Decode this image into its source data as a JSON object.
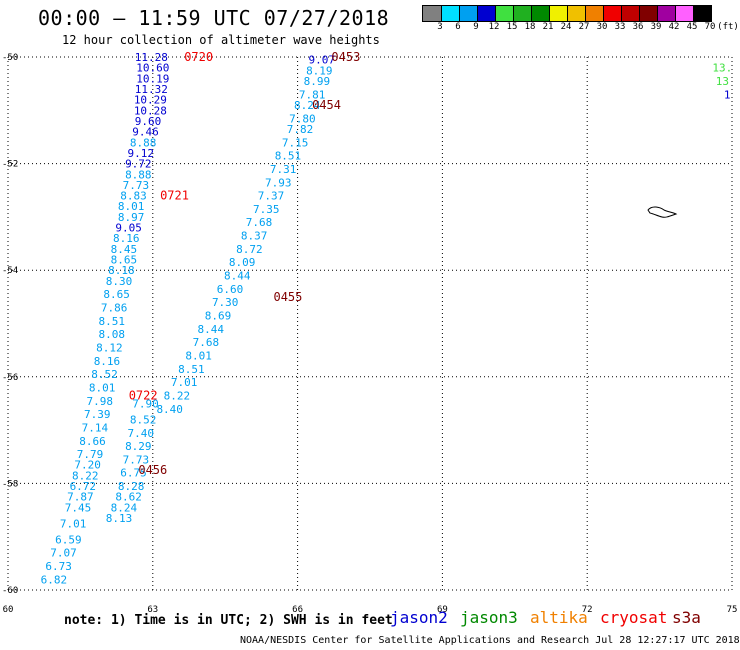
{
  "header": {
    "title": "00:00 – 11:59 UTC 07/27/2018",
    "subtitle": "12 hour collection of altimeter wave heights"
  },
  "color_scale": {
    "labels": [
      "3",
      "6",
      "9",
      "12",
      "15",
      "18",
      "21",
      "24",
      "27",
      "30",
      "33",
      "36",
      "39",
      "42",
      "45",
      "70",
      "(ft)"
    ],
    "colors": [
      "#808080",
      "#00e0ff",
      "#00a0f0",
      "#0000d0",
      "#40e040",
      "#20b020",
      "#008800",
      "#f0f000",
      "#f0c000",
      "#f08000",
      "#f00000",
      "#c00000",
      "#800000",
      "#a000a0",
      "#ff60ff",
      "#000000"
    ]
  },
  "axes": {
    "x_ticks": [
      "60",
      "63",
      "66",
      "69",
      "72",
      "75"
    ],
    "y_ticks": [
      "-50",
      "-52",
      "-54",
      "-56",
      "-58",
      "-60"
    ],
    "x_range": [
      60,
      75
    ],
    "y_range": [
      -60,
      -50
    ]
  },
  "tracks": [
    {
      "points": [
        {
          "lon": 62.97,
          "lat": -50.0,
          "v": "11.28",
          "c": "#0000d0"
        },
        {
          "lon": 63.0,
          "lat": -50.2,
          "v": "10.60",
          "c": "#0000d0"
        },
        {
          "lon": 63.0,
          "lat": -50.4,
          "v": "10.19",
          "c": "#0000d0"
        },
        {
          "lon": 62.97,
          "lat": -50.6,
          "v": "11.32",
          "c": "#0000d0"
        },
        {
          "lon": 62.95,
          "lat": -50.8,
          "v": "10.29",
          "c": "#0000d0"
        },
        {
          "lon": 62.95,
          "lat": -51.0,
          "v": "10.28",
          "c": "#0000d0"
        },
        {
          "lon": 62.9,
          "lat": -51.2,
          "v": "9.60",
          "c": "#0000d0"
        },
        {
          "lon": 62.85,
          "lat": -51.4,
          "v": "9.46",
          "c": "#0000d0"
        },
        {
          "lon": 62.8,
          "lat": -51.6,
          "v": "8.88",
          "c": "#00a0f0"
        },
        {
          "lon": 62.75,
          "lat": -51.8,
          "v": "9.12",
          "c": "#0000d0"
        },
        {
          "lon": 62.7,
          "lat": -52.0,
          "v": "9.72",
          "c": "#0000d0"
        },
        {
          "lon": 62.7,
          "lat": -52.2,
          "v": "8.88",
          "c": "#00a0f0"
        },
        {
          "lon": 62.65,
          "lat": -52.4,
          "v": "7.73",
          "c": "#00a0f0"
        },
        {
          "lon": 62.6,
          "lat": -52.6,
          "v": "8.83",
          "c": "#00a0f0"
        },
        {
          "lon": 62.55,
          "lat": -52.8,
          "v": "8.01",
          "c": "#00a0f0"
        },
        {
          "lon": 62.55,
          "lat": -53.0,
          "v": "8.97",
          "c": "#00a0f0"
        },
        {
          "lon": 62.5,
          "lat": -53.2,
          "v": "9.05",
          "c": "#0000d0"
        },
        {
          "lon": 62.45,
          "lat": -53.4,
          "v": "8.16",
          "c": "#00a0f0"
        },
        {
          "lon": 62.4,
          "lat": -53.6,
          "v": "8.45",
          "c": "#00a0f0"
        },
        {
          "lon": 62.4,
          "lat": -53.8,
          "v": "8.65",
          "c": "#00a0f0"
        },
        {
          "lon": 62.35,
          "lat": -54.0,
          "v": "8.18",
          "c": "#00a0f0"
        },
        {
          "lon": 62.3,
          "lat": -54.2,
          "v": "8.30",
          "c": "#00a0f0"
        },
        {
          "lon": 62.25,
          "lat": -54.45,
          "v": "8.65",
          "c": "#00a0f0"
        },
        {
          "lon": 62.2,
          "lat": -54.7,
          "v": "7.86",
          "c": "#00a0f0"
        },
        {
          "lon": 62.15,
          "lat": -54.95,
          "v": "8.51",
          "c": "#00a0f0"
        },
        {
          "lon": 62.15,
          "lat": -55.2,
          "v": "8.08",
          "c": "#00a0f0"
        },
        {
          "lon": 62.1,
          "lat": -55.45,
          "v": "8.12",
          "c": "#00a0f0"
        },
        {
          "lon": 62.05,
          "lat": -55.7,
          "v": "8.16",
          "c": "#00a0f0"
        },
        {
          "lon": 62.0,
          "lat": -55.95,
          "v": "8.52",
          "c": "#00a0f0"
        },
        {
          "lon": 61.95,
          "lat": -56.2,
          "v": "8.01",
          "c": "#00a0f0"
        },
        {
          "lon": 61.9,
          "lat": -56.45,
          "v": "7.98",
          "c": "#00a0f0"
        },
        {
          "lon": 61.85,
          "lat": -56.7,
          "v": "7.39",
          "c": "#00a0f0"
        },
        {
          "lon": 61.8,
          "lat": -56.95,
          "v": "7.14",
          "c": "#00a0f0"
        },
        {
          "lon": 61.75,
          "lat": -57.2,
          "v": "8.66",
          "c": "#00a0f0"
        },
        {
          "lon": 61.7,
          "lat": -57.45,
          "v": "7.79",
          "c": "#00a0f0"
        },
        {
          "lon": 61.65,
          "lat": -57.65,
          "v": "7.20",
          "c": "#00a0f0"
        },
        {
          "lon": 61.6,
          "lat": -57.85,
          "v": "8.22",
          "c": "#00a0f0"
        },
        {
          "lon": 61.55,
          "lat": -58.05,
          "v": "6.72",
          "c": "#00a0f0"
        },
        {
          "lon": 61.5,
          "lat": -58.25,
          "v": "7.87",
          "c": "#00a0f0"
        },
        {
          "lon": 61.45,
          "lat": -58.45,
          "v": "7.45",
          "c": "#00a0f0"
        },
        {
          "lon": 61.35,
          "lat": -58.75,
          "v": "7.01",
          "c": "#00a0f0"
        },
        {
          "lon": 61.25,
          "lat": -59.05,
          "v": "6.59",
          "c": "#00a0f0"
        },
        {
          "lon": 61.15,
          "lat": -59.3,
          "v": "7.07",
          "c": "#00a0f0"
        },
        {
          "lon": 61.05,
          "lat": -59.55,
          "v": "6.73",
          "c": "#00a0f0"
        },
        {
          "lon": 60.95,
          "lat": -59.8,
          "v": "6.82",
          "c": "#00a0f0"
        }
      ]
    },
    {
      "points": [
        {
          "lon": 62.85,
          "lat": -56.5,
          "v": "7.90",
          "c": "#00a0f0"
        },
        {
          "lon": 62.8,
          "lat": -56.8,
          "v": "8.52",
          "c": "#00a0f0"
        },
        {
          "lon": 62.75,
          "lat": -57.05,
          "v": "7.40",
          "c": "#00a0f0"
        },
        {
          "lon": 62.7,
          "lat": -57.3,
          "v": "8.29",
          "c": "#00a0f0"
        },
        {
          "lon": 62.65,
          "lat": -57.55,
          "v": "7.73",
          "c": "#00a0f0"
        },
        {
          "lon": 62.6,
          "lat": -57.8,
          "v": "6.75",
          "c": "#00a0f0"
        },
        {
          "lon": 62.55,
          "lat": -58.05,
          "v": "8.28",
          "c": "#00a0f0"
        },
        {
          "lon": 62.5,
          "lat": -58.25,
          "v": "8.62",
          "c": "#00a0f0"
        },
        {
          "lon": 62.4,
          "lat": -58.45,
          "v": "8.24",
          "c": "#00a0f0"
        },
        {
          "lon": 62.3,
          "lat": -58.65,
          "v": "8.13",
          "c": "#00a0f0"
        }
      ]
    },
    {
      "points": [
        {
          "lon": 66.5,
          "lat": -50.05,
          "v": "9.07",
          "c": "#0000d0"
        },
        {
          "lon": 66.45,
          "lat": -50.25,
          "v": "8.19",
          "c": "#00a0f0"
        },
        {
          "lon": 66.4,
          "lat": -50.45,
          "v": "8.99",
          "c": "#00a0f0"
        },
        {
          "lon": 66.3,
          "lat": -50.7,
          "v": "7.81",
          "c": "#00a0f0"
        },
        {
          "lon": 66.2,
          "lat": -50.9,
          "v": "8.24",
          "c": "#00a0f0"
        },
        {
          "lon": 66.1,
          "lat": -51.15,
          "v": "7.80",
          "c": "#00a0f0"
        },
        {
          "lon": 66.05,
          "lat": -51.35,
          "v": "7.82",
          "c": "#00a0f0"
        },
        {
          "lon": 65.95,
          "lat": -51.6,
          "v": "7.15",
          "c": "#00a0f0"
        },
        {
          "lon": 65.8,
          "lat": -51.85,
          "v": "8.51",
          "c": "#00a0f0"
        },
        {
          "lon": 65.7,
          "lat": -52.1,
          "v": "7.31",
          "c": "#00a0f0"
        },
        {
          "lon": 65.6,
          "lat": -52.35,
          "v": "7.93",
          "c": "#00a0f0"
        },
        {
          "lon": 65.45,
          "lat": -52.6,
          "v": "7.37",
          "c": "#00a0f0"
        },
        {
          "lon": 65.35,
          "lat": -52.85,
          "v": "7.35",
          "c": "#00a0f0"
        },
        {
          "lon": 65.2,
          "lat": -53.1,
          "v": "7.68",
          "c": "#00a0f0"
        },
        {
          "lon": 65.1,
          "lat": -53.35,
          "v": "8.37",
          "c": "#00a0f0"
        },
        {
          "lon": 65.0,
          "lat": -53.6,
          "v": "8.72",
          "c": "#00a0f0"
        },
        {
          "lon": 64.85,
          "lat": -53.85,
          "v": "8.09",
          "c": "#00a0f0"
        },
        {
          "lon": 64.75,
          "lat": -54.1,
          "v": "8.44",
          "c": "#00a0f0"
        },
        {
          "lon": 64.6,
          "lat": -54.35,
          "v": "6.60",
          "c": "#00a0f0"
        },
        {
          "lon": 64.5,
          "lat": -54.6,
          "v": "7.30",
          "c": "#00a0f0"
        },
        {
          "lon": 64.35,
          "lat": -54.85,
          "v": "8.69",
          "c": "#00a0f0"
        },
        {
          "lon": 64.2,
          "lat": -55.1,
          "v": "8.44",
          "c": "#00a0f0"
        },
        {
          "lon": 64.1,
          "lat": -55.35,
          "v": "7.68",
          "c": "#00a0f0"
        },
        {
          "lon": 63.95,
          "lat": -55.6,
          "v": "8.01",
          "c": "#00a0f0"
        },
        {
          "lon": 63.8,
          "lat": -55.85,
          "v": "8.51",
          "c": "#00a0f0"
        },
        {
          "lon": 63.65,
          "lat": -56.1,
          "v": "7.01",
          "c": "#00a0f0"
        },
        {
          "lon": 63.5,
          "lat": -56.35,
          "v": "8.22",
          "c": "#00a0f0"
        },
        {
          "lon": 63.35,
          "lat": -56.6,
          "v": "8.40",
          "c": "#00a0f0"
        }
      ]
    },
    {
      "points": [
        {
          "lon": 74.8,
          "lat": -50.2,
          "v": "13.",
          "c": "#40e040"
        },
        {
          "lon": 74.8,
          "lat": -50.45,
          "v": "13",
          "c": "#40e040"
        },
        {
          "lon": 74.9,
          "lat": -50.7,
          "v": "1",
          "c": "#0000d0"
        }
      ]
    }
  ],
  "time_labels": [
    {
      "lon": 63.95,
      "lat": -50.0,
      "text": "0720",
      "c": "#f00000"
    },
    {
      "lon": 63.45,
      "lat": -52.6,
      "text": "0721",
      "c": "#f00000"
    },
    {
      "lon": 62.8,
      "lat": -56.35,
      "text": "0722",
      "c": "#f00000"
    },
    {
      "lon": 67.0,
      "lat": -50.0,
      "text": "0453",
      "c": "#800000"
    },
    {
      "lon": 66.6,
      "lat": -50.9,
      "text": "0454",
      "c": "#800000"
    },
    {
      "lon": 65.8,
      "lat": -54.5,
      "text": "0455",
      "c": "#800000"
    },
    {
      "lon": 63.0,
      "lat": -57.75,
      "text": "0456",
      "c": "#800000"
    }
  ],
  "footer": {
    "note": "note: 1) Time is in UTC; 2) SWH is in feet",
    "credit": "NOAA/NESDIS Center for Satellite Applications and Research   Jul 28 12:27:17 UTC 2018",
    "satellites": [
      {
        "name": "jason2",
        "color": "#0000d0"
      },
      {
        "name": "jason3",
        "color": "#008800"
      },
      {
        "name": "altika",
        "color": "#f08000"
      },
      {
        "name": "cryosat",
        "color": "#f00000"
      },
      {
        "name": "s3a",
        "color": "#800000"
      }
    ]
  }
}
